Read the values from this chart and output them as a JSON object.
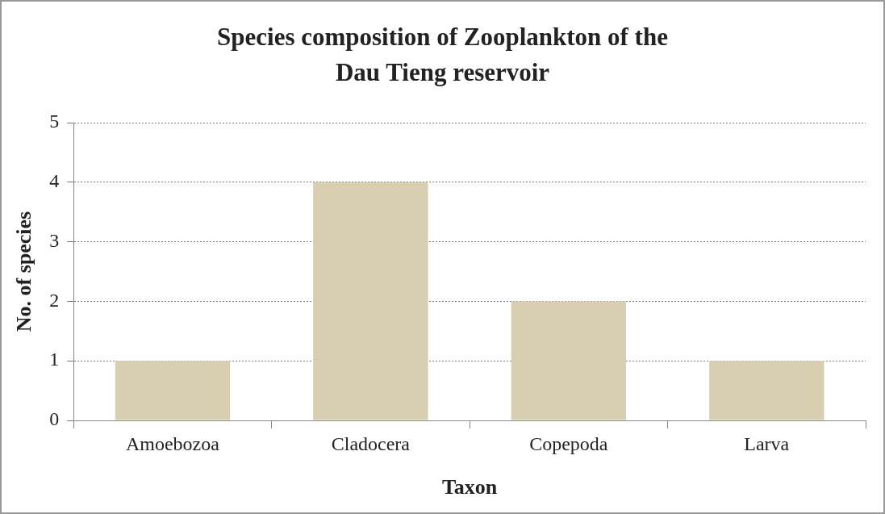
{
  "chart_data": {
    "type": "bar",
    "title": "Species composition of  Zooplankton of the Dau Tieng reservoir",
    "xlabel": "Taxon",
    "ylabel": "No. of species",
    "categories": [
      "Amoebozoa",
      "Cladocera",
      "Copepoda",
      "Larva"
    ],
    "values": [
      1,
      4,
      2,
      1
    ],
    "color": "#d8cfb3",
    "ylim": [
      0,
      5
    ],
    "yticks": [
      0,
      1,
      2,
      3,
      4,
      5
    ],
    "grid": "y",
    "legend": false
  }
}
